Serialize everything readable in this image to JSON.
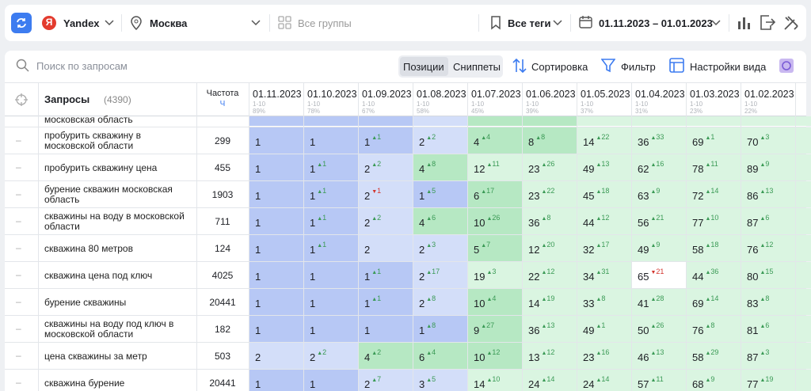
{
  "toolbar": {
    "engine_logo": "Я",
    "engine": "Yandex",
    "region": "Москва",
    "groups": "Все группы",
    "tags": "Все теги",
    "period": "01.11.2023 – 01.01.2023"
  },
  "controls": {
    "search_placeholder": "Поиск по запросам",
    "tabs": [
      "Позиции",
      "Сниппеты"
    ],
    "sort": "Сортировка",
    "filter": "Фильтр",
    "view_settings": "Настройки вида"
  },
  "table": {
    "query_header": "Запросы",
    "query_count": "(4390)",
    "freq_header": "Частота",
    "freq_sub": "Ч",
    "columns": [
      {
        "date": "01.11.2023",
        "range": "1-10",
        "share": "89%"
      },
      {
        "date": "01.10.2023",
        "range": "1-10",
        "share": "78%"
      },
      {
        "date": "01.09.2023",
        "range": "1-10",
        "share": "67%"
      },
      {
        "date": "01.08.2023",
        "range": "1-10",
        "share": "58%"
      },
      {
        "date": "01.07.2023",
        "range": "1-10",
        "share": "45%"
      },
      {
        "date": "01.06.2023",
        "range": "1-10",
        "share": "39%"
      },
      {
        "date": "01.05.2023",
        "range": "1-10",
        "share": "37%"
      },
      {
        "date": "01.04.2023",
        "range": "1-10",
        "share": "31%"
      },
      {
        "date": "01.03.2023",
        "range": "1-10",
        "share": "23%"
      },
      {
        "date": "01.02.2023",
        "range": "1-10",
        "share": "22%"
      }
    ],
    "partial_row": "московская область",
    "rows": [
      {
        "query": "пробурить скважину в московской области",
        "freq": 299,
        "cells": [
          {
            "v": 1
          },
          {
            "v": 1
          },
          {
            "v": 1,
            "up": 1
          },
          {
            "v": 2,
            "up": 2
          },
          {
            "v": 4,
            "up": 4
          },
          {
            "v": 8,
            "up": 8
          },
          {
            "v": 14,
            "up": 22
          },
          {
            "v": 36,
            "up": 33
          },
          {
            "v": 69,
            "up": 1
          },
          {
            "v": 70,
            "up": 3
          }
        ]
      },
      {
        "query": "пробурить скважину цена",
        "freq": 455,
        "cells": [
          {
            "v": 1
          },
          {
            "v": 1,
            "up": 1
          },
          {
            "v": 2,
            "up": 2
          },
          {
            "v": 4,
            "up": 8
          },
          {
            "v": 12,
            "up": 11
          },
          {
            "v": 23,
            "up": 26
          },
          {
            "v": 49,
            "up": 13
          },
          {
            "v": 62,
            "up": 16
          },
          {
            "v": 78,
            "up": 11
          },
          {
            "v": 89,
            "up": 9
          }
        ]
      },
      {
        "query": "бурение скважин московская область",
        "freq": 1903,
        "cells": [
          {
            "v": 1
          },
          {
            "v": 1,
            "up": 1
          },
          {
            "v": 2,
            "down": 1
          },
          {
            "v": 1,
            "up": 5
          },
          {
            "v": 6,
            "up": 17
          },
          {
            "v": 23,
            "up": 22
          },
          {
            "v": 45,
            "up": 18
          },
          {
            "v": 63,
            "up": 9
          },
          {
            "v": 72,
            "up": 14
          },
          {
            "v": 86,
            "up": 13
          }
        ]
      },
      {
        "query": "скважины на воду в московской области",
        "freq": 711,
        "cells": [
          {
            "v": 1
          },
          {
            "v": 1,
            "up": 1
          },
          {
            "v": 2,
            "up": 2
          },
          {
            "v": 4,
            "up": 6
          },
          {
            "v": 10,
            "up": 26
          },
          {
            "v": 36,
            "up": 8
          },
          {
            "v": 44,
            "up": 12
          },
          {
            "v": 56,
            "up": 21
          },
          {
            "v": 77,
            "up": 10
          },
          {
            "v": 87,
            "up": 6
          }
        ]
      },
      {
        "query": "скважина 80 метров",
        "freq": 124,
        "cells": [
          {
            "v": 1
          },
          {
            "v": 1,
            "up": 1
          },
          {
            "v": 2
          },
          {
            "v": 2,
            "up": 3
          },
          {
            "v": 5,
            "up": 7
          },
          {
            "v": 12,
            "up": 20
          },
          {
            "v": 32,
            "up": 17
          },
          {
            "v": 49,
            "up": 9
          },
          {
            "v": 58,
            "up": 18
          },
          {
            "v": 76,
            "up": 12
          }
        ]
      },
      {
        "query": "скважина цена под ключ",
        "freq": 4025,
        "cells": [
          {
            "v": 1
          },
          {
            "v": 1
          },
          {
            "v": 1,
            "up": 1
          },
          {
            "v": 2,
            "up": 17
          },
          {
            "v": 19,
            "up": 3
          },
          {
            "v": 22,
            "up": 12
          },
          {
            "v": 34,
            "up": 31
          },
          {
            "v": 65,
            "down": 21
          },
          {
            "v": 44,
            "up": 36
          },
          {
            "v": 80,
            "up": 15
          }
        ]
      },
      {
        "query": "бурение скважины",
        "freq": 20441,
        "cells": [
          {
            "v": 1
          },
          {
            "v": 1
          },
          {
            "v": 1,
            "up": 1
          },
          {
            "v": 2,
            "up": 8
          },
          {
            "v": 10,
            "up": 4
          },
          {
            "v": 14,
            "up": 19
          },
          {
            "v": 33,
            "up": 8
          },
          {
            "v": 41,
            "up": 28
          },
          {
            "v": 69,
            "up": 14
          },
          {
            "v": 83,
            "up": 8
          }
        ]
      },
      {
        "query": "скважины на воду под ключ в московской области",
        "freq": 182,
        "cells": [
          {
            "v": 1
          },
          {
            "v": 1
          },
          {
            "v": 1
          },
          {
            "v": 1,
            "up": 8
          },
          {
            "v": 9,
            "up": 27
          },
          {
            "v": 36,
            "up": 13
          },
          {
            "v": 49,
            "up": 1
          },
          {
            "v": 50,
            "up": 26
          },
          {
            "v": 76,
            "up": 8
          },
          {
            "v": 81,
            "up": 6
          }
        ]
      },
      {
        "query": "цена скважины за метр",
        "freq": 503,
        "cells": [
          {
            "v": 2
          },
          {
            "v": 2,
            "up": 2
          },
          {
            "v": 4,
            "up": 2
          },
          {
            "v": 6,
            "up": 4
          },
          {
            "v": 10,
            "up": 12
          },
          {
            "v": 13,
            "up": 12
          },
          {
            "v": 23,
            "up": 16
          },
          {
            "v": 46,
            "up": 13
          },
          {
            "v": 58,
            "up": 29
          },
          {
            "v": 87,
            "up": 3
          }
        ]
      },
      {
        "query": "скважина бурение",
        "freq": 20441,
        "cells": [
          {
            "v": 1
          },
          {
            "v": 1
          },
          {
            "v": 2,
            "up": 7
          },
          {
            "v": 3,
            "up": 5
          },
          {
            "v": 14,
            "up": 10
          },
          {
            "v": 24,
            "up": 14
          },
          {
            "v": 24,
            "up": 14
          },
          {
            "v": 57,
            "up": 11
          },
          {
            "v": 68,
            "up": 9
          },
          {
            "v": 77,
            "up": 19
          }
        ]
      }
    ]
  }
}
